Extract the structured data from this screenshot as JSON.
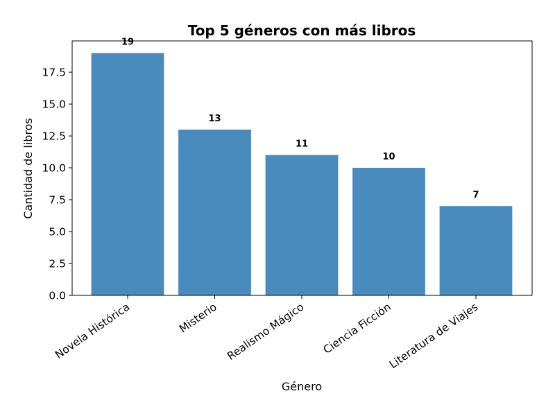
{
  "chart_data": {
    "type": "bar",
    "title": "Top 5 géneros con más libros",
    "xlabel": "Género",
    "ylabel": "Cantidad de libros",
    "categories": [
      "Novela Histórica",
      "Misterio",
      "Realismo Mágico",
      "Ciencia Ficción",
      "Literatura de Viajes"
    ],
    "values": [
      19,
      13,
      11,
      10,
      7
    ],
    "value_labels": [
      "19",
      "13",
      "11",
      "10",
      "7"
    ],
    "ylim": [
      0,
      19.95
    ],
    "yticks": [
      0,
      2.5,
      5,
      7.5,
      10,
      12.5,
      15,
      17.5
    ],
    "ytick_labels": [
      "0.0",
      "2.5",
      "5.0",
      "7.5",
      "10.0",
      "12.5",
      "15.0",
      "17.5"
    ],
    "bar_color": "#4a8bbe",
    "grid": false,
    "legend": "none"
  }
}
